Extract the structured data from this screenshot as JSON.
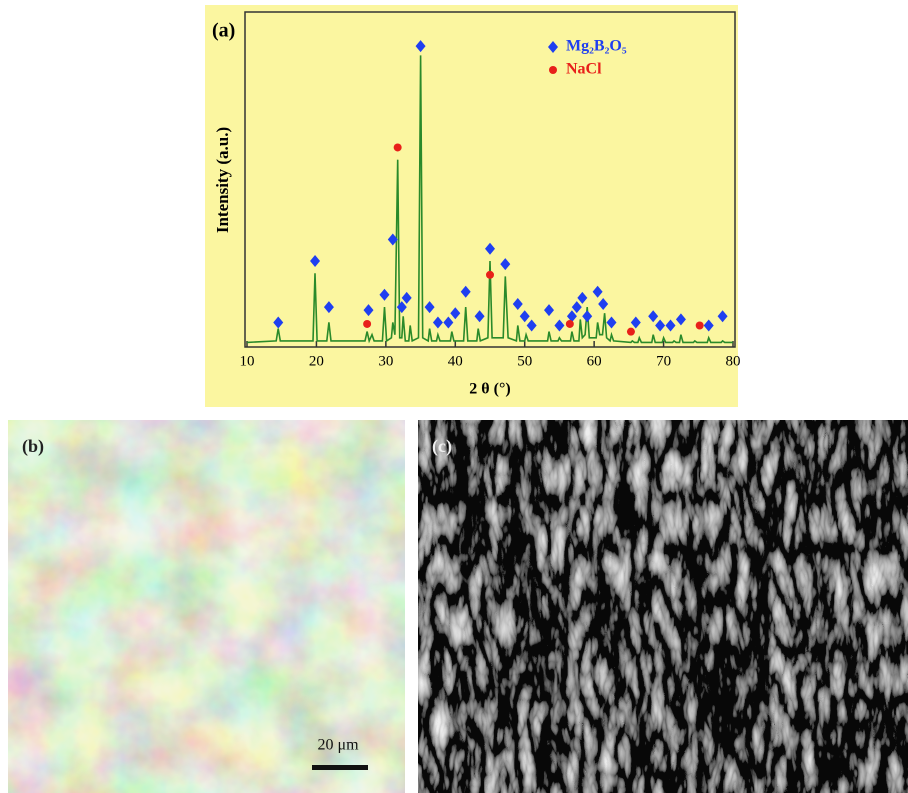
{
  "chart_data": {
    "type": "line",
    "panel_label": "(a)",
    "x_label": "2 θ (°)",
    "y_label": "Intensity (a.u.)",
    "xlim": [
      10,
      80
    ],
    "xticks": [
      10,
      20,
      30,
      40,
      50,
      60,
      70,
      80
    ],
    "ylim": [
      0,
      100
    ],
    "legend": "upper right",
    "series": [
      {
        "type": "line",
        "color": "#2a8a2a",
        "x": [
          10,
          14.2,
          14.5,
          14.8,
          19.5,
          19.8,
          20.1,
          21.5,
          21.8,
          22.1,
          27.0,
          27.3,
          27.6,
          28.0,
          28.3,
          29.5,
          29.8,
          30.1,
          30.8,
          31.0,
          31.3,
          31.7,
          32.0,
          32.3,
          32.5,
          32.8,
          33.3,
          33.5,
          33.8,
          34.7,
          35.0,
          35.3,
          36.1,
          36.3,
          36.6,
          37.3,
          37.5,
          37.8,
          39.3,
          39.5,
          39.8,
          41.2,
          41.5,
          41.8,
          43.1,
          43.3,
          43.6,
          44.7,
          45.0,
          45.3,
          46.9,
          47.2,
          47.6,
          48.8,
          49.0,
          49.3,
          50.0,
          50.2,
          50.5,
          53.3,
          53.5,
          53.8,
          54.8,
          55.0,
          55.3,
          56.6,
          56.8,
          57.1,
          57.8,
          58.0,
          58.3,
          58.7,
          59.0,
          59.3,
          60.3,
          60.5,
          60.8,
          61.2,
          61.5,
          61.8,
          62.3,
          62.5,
          62.8,
          65.3,
          65.5,
          65.8,
          66.3,
          66.5,
          66.8,
          68.3,
          68.5,
          68.8,
          69.8,
          70.0,
          70.3,
          71.3,
          71.5,
          71.8,
          72.3,
          72.5,
          72.8,
          74.3,
          74.5,
          74.8,
          76.3,
          76.5,
          76.8,
          78.3,
          78.5,
          78.8,
          80
        ],
        "y": [
          1.5,
          2,
          6,
          2,
          2,
          24,
          2,
          2,
          8,
          2,
          2,
          5,
          2,
          4,
          2,
          2,
          13,
          2,
          3,
          8,
          4,
          61,
          3,
          3,
          10,
          2,
          2,
          7,
          2,
          3,
          95,
          3,
          2,
          6,
          2,
          2,
          4,
          2,
          2,
          5,
          2,
          2,
          13,
          2,
          2,
          6,
          2,
          3,
          28,
          3,
          3,
          23,
          3,
          2,
          7,
          2,
          2,
          4,
          2,
          2,
          5,
          2,
          2,
          3,
          2,
          2,
          5,
          2,
          2,
          9,
          3,
          4,
          13,
          3,
          3,
          8,
          4,
          4,
          11,
          3,
          2,
          4,
          2,
          1.5,
          2,
          1.5,
          1.5,
          3,
          1.5,
          1.5,
          4,
          1.5,
          1.5,
          3,
          1.5,
          1.5,
          2,
          1.5,
          1.5,
          4,
          1.5,
          1.5,
          2,
          1.5,
          1.5,
          3,
          1.5,
          1.5,
          2,
          1.5,
          1.5
        ]
      },
      {
        "type": "scatter",
        "name": "Mg₂B₂O₅",
        "color": "#1f3ff0",
        "marker": "diamond",
        "x": [
          14.5,
          19.8,
          21.8,
          27.5,
          29.8,
          31.0,
          32.3,
          33.0,
          35.0,
          36.3,
          37.5,
          39.0,
          40.0,
          41.5,
          43.5,
          45.0,
          47.2,
          49.0,
          50.0,
          51.0,
          53.5,
          55.0,
          56.8,
          57.5,
          58.3,
          59.0,
          60.5,
          61.3,
          62.5,
          66.0,
          68.5,
          69.5,
          71.0,
          72.5,
          76.5,
          78.5
        ],
        "y": [
          8,
          28,
          13,
          12,
          17,
          35,
          13,
          16,
          98,
          13,
          8,
          8,
          11,
          18,
          10,
          32,
          27,
          14,
          10,
          7,
          12,
          7,
          10,
          13,
          16,
          10,
          18,
          14,
          8,
          8,
          10,
          7,
          7,
          9,
          7,
          10
        ]
      },
      {
        "type": "scatter",
        "name": "NaCl",
        "color": "#e8201a",
        "marker": "circle",
        "x": [
          27.3,
          31.7,
          45.0,
          56.5,
          65.3,
          75.2
        ],
        "y": [
          7.5,
          65,
          23.5,
          7.5,
          5,
          7
        ]
      }
    ]
  },
  "panels": [
    {
      "label": "(b)",
      "scale_bar": "20 μm"
    },
    {
      "label": "(c)"
    }
  ]
}
